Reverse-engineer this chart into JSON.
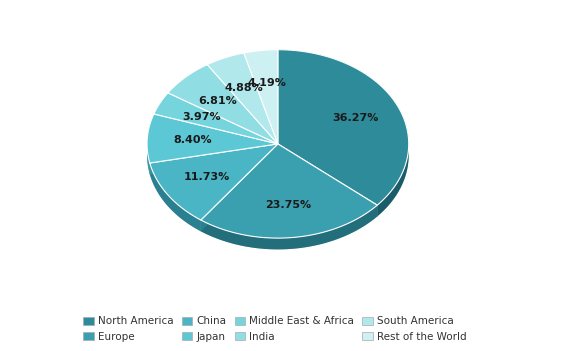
{
  "labels": [
    "North America",
    "Europe",
    "China",
    "Japan",
    "Middle East & Africa",
    "India",
    "South America",
    "Rest of the World"
  ],
  "values": [
    36.27,
    23.75,
    11.73,
    8.4,
    3.97,
    6.81,
    4.88,
    4.19
  ],
  "colors": [
    "#2e8b9a",
    "#3aa0b0",
    "#4ab5c5",
    "#5dc8d5",
    "#75d4dc",
    "#90dde4",
    "#b0e8ec",
    "#cdf0f3"
  ],
  "dark_colors": [
    "#1a5c6a",
    "#226e7a",
    "#2a8090",
    "#3595a0",
    "#40a5ae",
    "#50b5bc",
    "#70c8ce",
    "#90d8dc"
  ],
  "pct_labels": [
    "36.27%",
    "23.75%",
    "11.73%",
    "8.40%",
    "3.97%",
    "6.81%",
    "4.88%",
    "4.19%"
  ],
  "legend_labels": [
    "North America",
    "Europe",
    "China",
    "Japan",
    "Middle East & Africa",
    "India",
    "South America",
    "Rest of the World"
  ],
  "startangle": 90,
  "background_color": "#ffffff",
  "depth": 0.12,
  "aspect_ratio": 0.72
}
